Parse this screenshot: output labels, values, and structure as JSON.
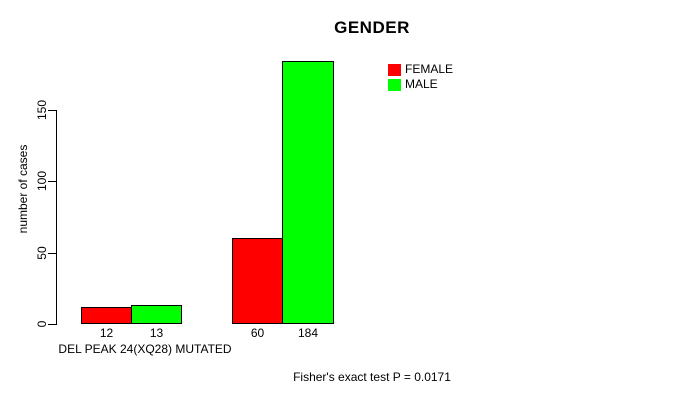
{
  "chart_data": {
    "type": "bar",
    "title": "GENDER",
    "ylabel": "number of cases",
    "xlabel": "",
    "categories": [
      "DEL PEAK 24(XQ28) MUTATED",
      ""
    ],
    "series": [
      {
        "name": "FEMALE",
        "color": "#ff0000",
        "values": [
          12,
          60
        ]
      },
      {
        "name": "MALE",
        "color": "#00ff00",
        "values": [
          13,
          184
        ]
      }
    ],
    "yticks": [
      0,
      50,
      100,
      150
    ],
    "ylim": [
      0,
      184
    ],
    "grid": false,
    "legend_position": "top-right",
    "bar_value_labels": [
      12,
      13,
      60,
      184
    ],
    "annotation": "Fisher's exact test P = 0.0171"
  },
  "group_label": "DEL PEAK 24(XQ28) MUTATED",
  "caption": "Fisher's exact test P = 0.0171",
  "colors": {
    "background": "#ffffff",
    "axis": "#000000",
    "text": "#000000"
  }
}
